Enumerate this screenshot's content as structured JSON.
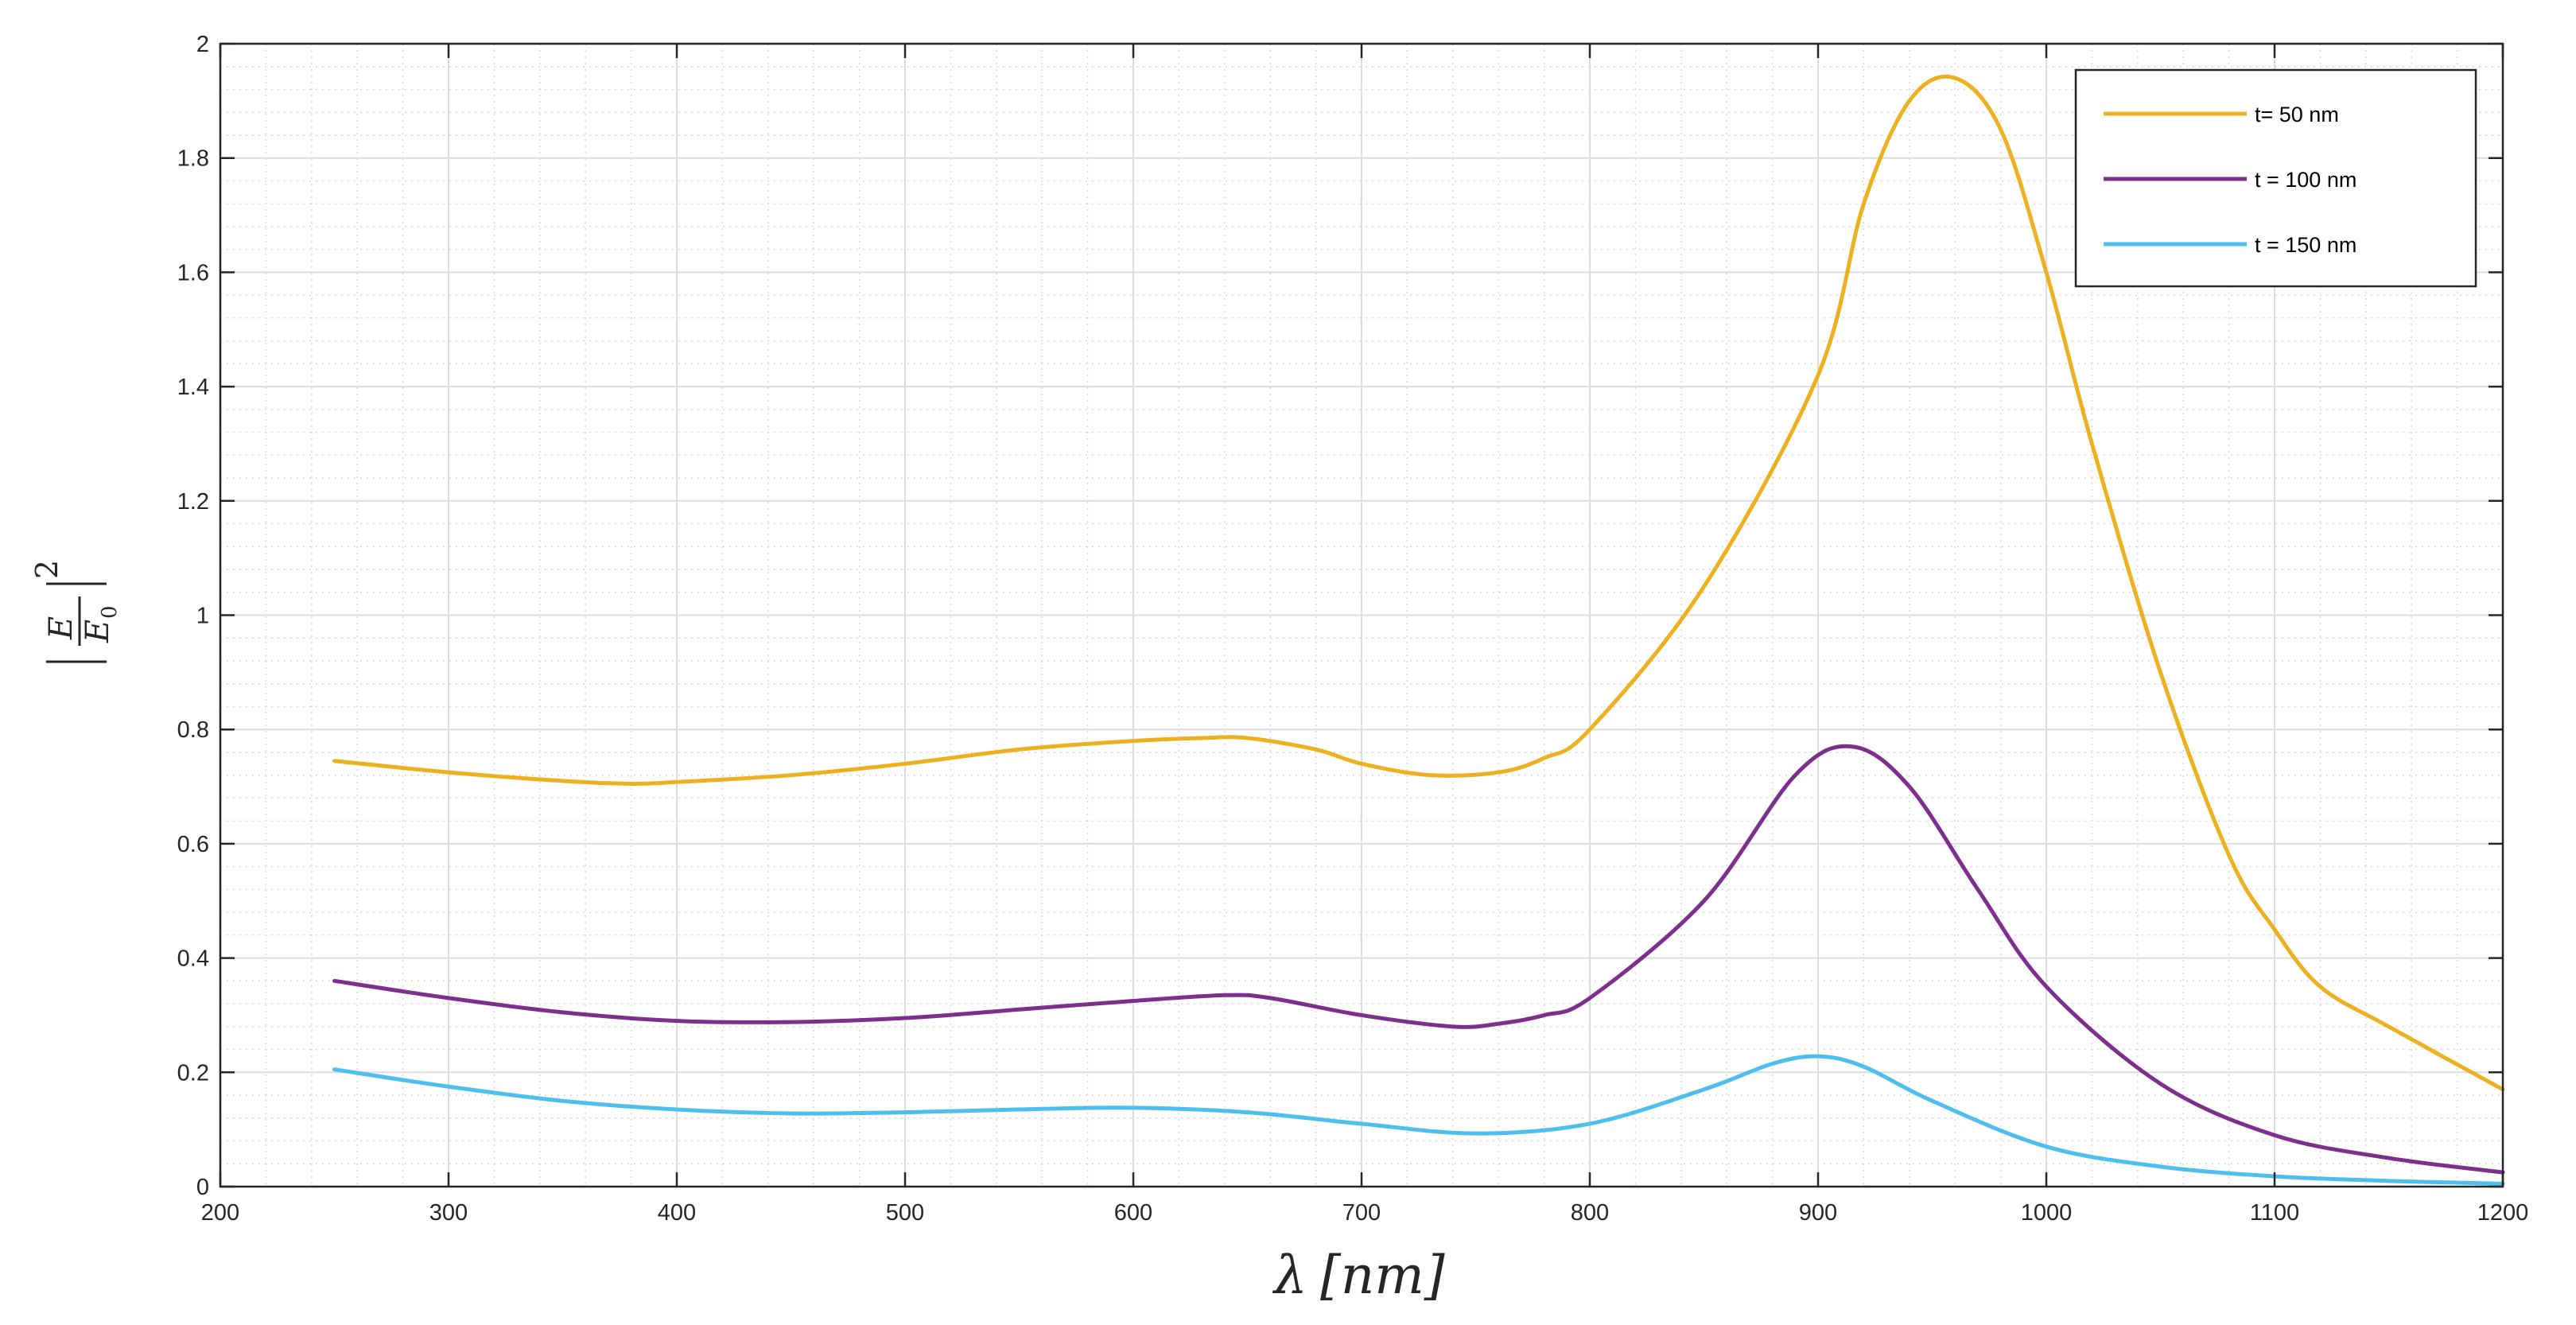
{
  "chart_data": {
    "type": "line",
    "xlabel_symbol": "λ",
    "xlabel_unit": "[nm]",
    "ylabel": {
      "numerator": "E",
      "denominator": "E",
      "denominator_sub": "0",
      "exponent": "2"
    },
    "xlim": [
      200,
      1200
    ],
    "ylim": [
      0,
      2
    ],
    "xticks": [
      200,
      300,
      400,
      500,
      600,
      700,
      800,
      900,
      1000,
      1100,
      1200
    ],
    "xtick_labels": [
      "200",
      "300",
      "400",
      "500",
      "600",
      "700",
      "800",
      "900",
      "1000",
      "1100",
      "1200"
    ],
    "yticks": [
      0,
      0.2,
      0.4,
      0.6,
      0.8,
      1,
      1.2,
      1.4,
      1.6,
      1.8,
      2
    ],
    "ytick_labels": [
      "0",
      "0.2",
      "0.4",
      "0.6",
      "0.8",
      "1",
      "1.2",
      "1.4",
      "1.6",
      "1.8",
      "2"
    ],
    "grid": true,
    "minor_grid": true,
    "legend_position": "top-right",
    "series": [
      {
        "name": "t= 50 nm",
        "color": "#EDB120",
        "x": [
          250,
          300,
          350,
          380,
          400,
          450,
          500,
          550,
          600,
          630,
          650,
          680,
          700,
          730,
          760,
          780,
          800,
          850,
          900,
          920,
          940,
          960,
          980,
          1000,
          1020,
          1050,
          1080,
          1100,
          1120,
          1150,
          1200
        ],
        "y": [
          0.745,
          0.725,
          0.71,
          0.705,
          0.708,
          0.72,
          0.74,
          0.765,
          0.78,
          0.785,
          0.785,
          0.765,
          0.74,
          0.72,
          0.725,
          0.75,
          0.8,
          1.05,
          1.42,
          1.72,
          1.9,
          1.94,
          1.85,
          1.6,
          1.3,
          0.9,
          0.58,
          0.45,
          0.35,
          0.28,
          0.17
        ]
      },
      {
        "name": "t = 100 nm",
        "color": "#7E2F8E",
        "x": [
          250,
          300,
          350,
          400,
          450,
          500,
          550,
          600,
          640,
          660,
          700,
          740,
          760,
          780,
          800,
          850,
          890,
          915,
          940,
          970,
          1000,
          1050,
          1100,
          1150,
          1200
        ],
        "y": [
          0.36,
          0.33,
          0.305,
          0.29,
          0.288,
          0.295,
          0.31,
          0.325,
          0.335,
          0.33,
          0.3,
          0.28,
          0.285,
          0.3,
          0.33,
          0.5,
          0.72,
          0.77,
          0.7,
          0.52,
          0.35,
          0.18,
          0.09,
          0.05,
          0.025
        ]
      },
      {
        "name": "t = 150 nm",
        "color": "#4DBEEE",
        "x": [
          250,
          300,
          350,
          400,
          450,
          500,
          550,
          600,
          650,
          700,
          750,
          800,
          850,
          880,
          900,
          920,
          950,
          1000,
          1050,
          1100,
          1150,
          1200
        ],
        "y": [
          0.205,
          0.175,
          0.15,
          0.135,
          0.128,
          0.13,
          0.135,
          0.138,
          0.13,
          0.11,
          0.093,
          0.11,
          0.17,
          0.215,
          0.228,
          0.21,
          0.15,
          0.07,
          0.035,
          0.018,
          0.01,
          0.005
        ]
      }
    ]
  }
}
